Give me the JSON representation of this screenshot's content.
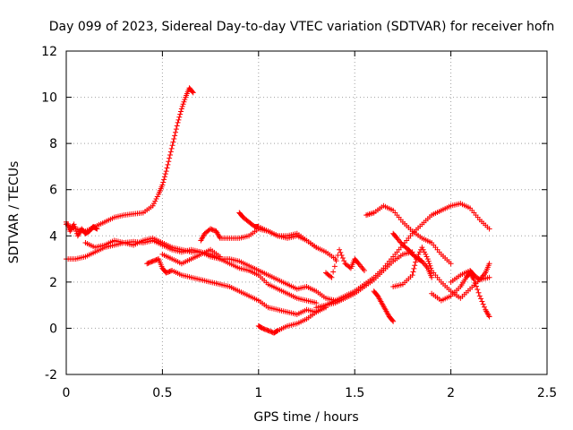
{
  "chart_data": {
    "type": "scatter",
    "title": "Day 099 of 2023, Sidereal Day-to-day VTEC variation (SDTVAR) for receiver hofn",
    "xlabel": "GPS time / hours",
    "ylabel": "SDTVAR / TECUs",
    "xlim": [
      0,
      2.5
    ],
    "ylim": [
      -2,
      12
    ],
    "xticks": [
      0,
      0.5,
      1,
      1.5,
      2,
      2.5
    ],
    "xtick_labels": [
      "0",
      "0.5",
      "1",
      "1.5",
      "2",
      "2.5"
    ],
    "yticks": [
      -2,
      0,
      2,
      4,
      6,
      8,
      10,
      12
    ],
    "ytick_labels": [
      "-2",
      "0",
      "2",
      "4",
      "6",
      "8",
      "10",
      "12"
    ],
    "grid": true,
    "marker": "+",
    "marker_color": "#ff0000",
    "series": [
      {
        "name": "arc-rising-high",
        "x": [
          0.0,
          0.05,
          0.1,
          0.15,
          0.2,
          0.25,
          0.3,
          0.35,
          0.4,
          0.45,
          0.48,
          0.5,
          0.52,
          0.54,
          0.56,
          0.58,
          0.6,
          0.62,
          0.64,
          0.66
        ],
        "y": [
          4.5,
          4.3,
          4.2,
          4.4,
          4.6,
          4.8,
          4.9,
          4.95,
          5.0,
          5.3,
          5.8,
          6.2,
          6.8,
          7.5,
          8.2,
          8.9,
          9.5,
          10.0,
          10.4,
          10.2
        ]
      },
      {
        "name": "arc-start-high",
        "x": [
          0.0,
          0.02,
          0.04,
          0.06,
          0.08,
          0.1,
          0.12,
          0.14,
          0.16
        ],
        "y": [
          4.6,
          4.2,
          4.5,
          4.0,
          4.3,
          4.1,
          4.2,
          4.4,
          4.3
        ]
      },
      {
        "name": "arc-long-3",
        "x": [
          0.0,
          0.05,
          0.1,
          0.15,
          0.2,
          0.25,
          0.3,
          0.35,
          0.4,
          0.45,
          0.5,
          0.55,
          0.6,
          0.65,
          0.7,
          0.75,
          0.8,
          0.85,
          0.9,
          0.95,
          1.0,
          1.05,
          1.1,
          1.15,
          1.2,
          1.25,
          1.3,
          1.35,
          1.4
        ],
        "y": [
          3.0,
          3.0,
          3.1,
          3.3,
          3.5,
          3.6,
          3.7,
          3.75,
          3.7,
          3.8,
          3.6,
          3.4,
          3.3,
          3.4,
          3.3,
          3.1,
          3.0,
          3.0,
          2.9,
          2.7,
          2.5,
          2.3,
          2.1,
          1.9,
          1.7,
          1.8,
          1.6,
          1.3,
          1.2
        ]
      },
      {
        "name": "arc-mid-3.7",
        "x": [
          0.1,
          0.15,
          0.2,
          0.25,
          0.3,
          0.35,
          0.4,
          0.45,
          0.5,
          0.55,
          0.6,
          0.65,
          0.7,
          0.75,
          0.8,
          0.85,
          0.9,
          0.95,
          1.0,
          1.05,
          1.1,
          1.15,
          1.2,
          1.25,
          1.3
        ],
        "y": [
          3.7,
          3.5,
          3.6,
          3.8,
          3.7,
          3.6,
          3.8,
          3.9,
          3.7,
          3.5,
          3.4,
          3.3,
          3.3,
          3.2,
          3.0,
          2.8,
          2.6,
          2.5,
          2.3,
          1.9,
          1.7,
          1.5,
          1.3,
          1.2,
          1.1
        ]
      },
      {
        "name": "arc-lower",
        "x": [
          0.42,
          0.45,
          0.48,
          0.5,
          0.52,
          0.55,
          0.6,
          0.65,
          0.7,
          0.75,
          0.8,
          0.85,
          0.9,
          0.95,
          1.0,
          1.05,
          1.1,
          1.15,
          1.2,
          1.25,
          1.3,
          1.35
        ],
        "y": [
          2.8,
          2.9,
          3.0,
          2.6,
          2.4,
          2.5,
          2.3,
          2.2,
          2.1,
          2.0,
          1.9,
          1.8,
          1.6,
          1.4,
          1.2,
          0.9,
          0.8,
          0.7,
          0.6,
          0.8,
          0.7,
          0.9
        ]
      },
      {
        "name": "arc-cross-upper",
        "x": [
          0.5,
          0.55,
          0.6,
          0.65,
          0.7,
          0.75,
          0.8
        ],
        "y": [
          3.2,
          3.0,
          2.8,
          3.0,
          3.2,
          3.4,
          3.1
        ]
      },
      {
        "name": "arc-mid-bump",
        "x": [
          0.7,
          0.72,
          0.75,
          0.78,
          0.8,
          0.85,
          0.9,
          0.95,
          1.0,
          1.05,
          1.1,
          1.15,
          1.2,
          1.25,
          1.3
        ],
        "y": [
          3.8,
          4.1,
          4.3,
          4.2,
          3.9,
          3.9,
          3.9,
          4.0,
          4.3,
          4.2,
          4.0,
          4.0,
          4.1,
          3.8,
          3.5
        ]
      },
      {
        "name": "arc-hump-0.9",
        "x": [
          0.9,
          0.92,
          0.95,
          0.98,
          1.0,
          1.05,
          1.1,
          1.15,
          1.2,
          1.25,
          1.3,
          1.35,
          1.4
        ],
        "y": [
          5.0,
          4.8,
          4.6,
          4.4,
          4.4,
          4.2,
          4.0,
          3.9,
          4.0,
          3.8,
          3.5,
          3.3,
          3.0
        ]
      },
      {
        "name": "arc-bottom",
        "x": [
          1.0,
          1.02,
          1.05,
          1.08,
          1.1,
          1.15,
          1.2,
          1.25,
          1.3,
          1.35,
          1.4,
          1.45,
          1.5,
          1.55,
          1.6,
          1.65,
          1.7,
          1.75,
          1.8,
          1.85,
          1.9,
          1.95,
          2.0,
          2.05,
          2.1,
          2.15,
          2.2
        ],
        "y": [
          0.1,
          0.0,
          -0.1,
          -0.2,
          -0.1,
          0.1,
          0.2,
          0.4,
          0.7,
          1.0,
          1.2,
          1.4,
          1.6,
          1.9,
          2.2,
          2.6,
          3.1,
          3.6,
          4.1,
          4.5,
          4.9,
          5.1,
          5.3,
          5.4,
          5.2,
          4.7,
          4.3
        ]
      },
      {
        "name": "arc-late-low",
        "x": [
          1.3,
          1.35,
          1.4,
          1.45,
          1.5,
          1.55,
          1.6,
          1.65,
          1.7,
          1.75,
          1.8
        ],
        "y": [
          0.9,
          1.0,
          1.1,
          1.3,
          1.5,
          1.8,
          2.1,
          2.5,
          2.9,
          3.2,
          3.3
        ]
      },
      {
        "name": "arc-scatter-1.4",
        "x": [
          1.35,
          1.38,
          1.42,
          1.45,
          1.48,
          1.5,
          1.52,
          1.55
        ],
        "y": [
          2.4,
          2.2,
          3.4,
          2.8,
          2.6,
          3.0,
          2.8,
          2.5
        ]
      },
      {
        "name": "arc-drop-1.6",
        "x": [
          1.6,
          1.62,
          1.64,
          1.66,
          1.68,
          1.7
        ],
        "y": [
          1.6,
          1.4,
          1.1,
          0.8,
          0.5,
          0.3
        ]
      },
      {
        "name": "arc-hump-1.6",
        "x": [
          1.56,
          1.6,
          1.65,
          1.7,
          1.75,
          1.8,
          1.85,
          1.9,
          1.95,
          2.0
        ],
        "y": [
          4.9,
          5.0,
          5.3,
          5.1,
          4.6,
          4.2,
          3.9,
          3.7,
          3.2,
          2.8
        ]
      },
      {
        "name": "arc-rise-1.7",
        "x": [
          1.7,
          1.72,
          1.75,
          1.78,
          1.8,
          1.83,
          1.85,
          1.88,
          1.9
        ],
        "y": [
          4.1,
          3.9,
          3.6,
          3.4,
          3.2,
          3.0,
          2.9,
          2.6,
          2.2
        ]
      },
      {
        "name": "arc-dip-1.75",
        "x": [
          1.7,
          1.75,
          1.8,
          1.82,
          1.85,
          1.88,
          1.9,
          1.95,
          2.0,
          2.05,
          2.1,
          2.15,
          2.2
        ],
        "y": [
          1.8,
          1.9,
          2.3,
          3.0,
          3.5,
          3.0,
          2.5,
          2.0,
          1.6,
          1.3,
          1.7,
          2.1,
          2.2
        ]
      },
      {
        "name": "arc-end",
        "x": [
          1.9,
          1.95,
          2.0,
          2.05,
          2.08,
          2.1,
          2.12,
          2.15,
          2.18,
          2.2
        ],
        "y": [
          1.5,
          1.2,
          1.4,
          1.8,
          2.2,
          2.4,
          2.1,
          1.4,
          0.8,
          0.5
        ]
      },
      {
        "name": "arc-end-mid",
        "x": [
          2.0,
          2.05,
          2.1,
          2.12,
          2.15,
          2.18,
          2.2
        ],
        "y": [
          2.0,
          2.3,
          2.5,
          2.3,
          2.1,
          2.4,
          2.8
        ]
      }
    ]
  }
}
